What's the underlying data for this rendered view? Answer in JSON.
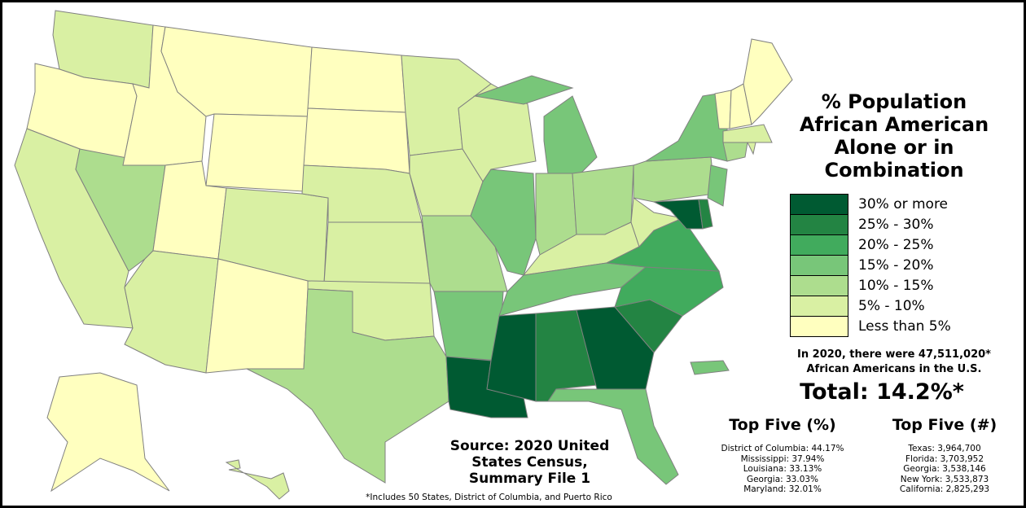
{
  "title": "% Population African American Alone or in Combination",
  "legend": [
    {
      "label": "30% or more",
      "color": "#005a32"
    },
    {
      "label": "25% - 30%",
      "color": "#238443"
    },
    {
      "label": "20% - 25%",
      "color": "#41ab5d"
    },
    {
      "label": "15% - 20%",
      "color": "#78c679"
    },
    {
      "label": "10% - 15%",
      "color": "#addd8e"
    },
    {
      "label": "5% - 10%",
      "color": "#d9f0a3"
    },
    {
      "label": "Less than 5%",
      "color": "#ffffbf"
    }
  ],
  "note_line1": "In 2020, there were 47,511,020*",
  "note_line2": "African Americans in the U.S.",
  "total": "Total: 14.2%*",
  "top_pct": {
    "heading": "Top Five (%)",
    "items": [
      "District of Columbia: 44.17%",
      "Mississippi: 37.94%",
      "Louisiana: 33.13%",
      "Georgia: 33.03%",
      "Maryland: 32.01%"
    ]
  },
  "top_num": {
    "heading": "Top Five (#)",
    "items": [
      "Texas: 3,964,700",
      "Florida: 3,703,952",
      "Georgia: 3,538,146",
      "New York: 3,533,873",
      "California: 2,825,293"
    ]
  },
  "source_line1": "Source: 2020 United",
  "source_line2": "States Census,",
  "source_line3": "Summary File 1",
  "footnote": "*Includes 50 States, District of Columbia, and Puerto Rico",
  "states": [
    {
      "name": "Washington",
      "cls": 5
    },
    {
      "name": "Oregon",
      "cls": 6
    },
    {
      "name": "California",
      "cls": 5
    },
    {
      "name": "Nevada",
      "cls": 4
    },
    {
      "name": "Idaho",
      "cls": 6
    },
    {
      "name": "Montana",
      "cls": 6
    },
    {
      "name": "Wyoming",
      "cls": 6
    },
    {
      "name": "Utah",
      "cls": 6
    },
    {
      "name": "Arizona",
      "cls": 5
    },
    {
      "name": "Colorado",
      "cls": 5
    },
    {
      "name": "New Mexico",
      "cls": 6
    },
    {
      "name": "North Dakota",
      "cls": 6
    },
    {
      "name": "South Dakota",
      "cls": 6
    },
    {
      "name": "Nebraska",
      "cls": 5
    },
    {
      "name": "Kansas",
      "cls": 5
    },
    {
      "name": "Oklahoma",
      "cls": 5
    },
    {
      "name": "Texas",
      "cls": 4
    },
    {
      "name": "Minnesota",
      "cls": 5
    },
    {
      "name": "Iowa",
      "cls": 5
    },
    {
      "name": "Missouri",
      "cls": 4
    },
    {
      "name": "Arkansas",
      "cls": 3
    },
    {
      "name": "Louisiana",
      "cls": 0
    },
    {
      "name": "Wisconsin",
      "cls": 5
    },
    {
      "name": "Illinois",
      "cls": 3
    },
    {
      "name": "Michigan",
      "cls": 3
    },
    {
      "name": "Michigan Upper Peninsula",
      "cls": 3
    },
    {
      "name": "Indiana",
      "cls": 4
    },
    {
      "name": "Ohio",
      "cls": 4
    },
    {
      "name": "Kentucky",
      "cls": 5
    },
    {
      "name": "Tennessee",
      "cls": 3
    },
    {
      "name": "Mississippi",
      "cls": 0
    },
    {
      "name": "Alabama",
      "cls": 1
    },
    {
      "name": "Georgia",
      "cls": 0
    },
    {
      "name": "Florida",
      "cls": 3
    },
    {
      "name": "South Carolina",
      "cls": 1
    },
    {
      "name": "North Carolina",
      "cls": 2
    },
    {
      "name": "Virginia",
      "cls": 2
    },
    {
      "name": "West Virginia",
      "cls": 5
    },
    {
      "name": "Pennsylvania",
      "cls": 4
    },
    {
      "name": "New York",
      "cls": 3
    },
    {
      "name": "Maryland",
      "cls": 0
    },
    {
      "name": "Delaware",
      "cls": 1
    },
    {
      "name": "New Jersey",
      "cls": 3
    },
    {
      "name": "Vermont",
      "cls": 6
    },
    {
      "name": "New Hampshire",
      "cls": 6
    },
    {
      "name": "Maine",
      "cls": 6
    },
    {
      "name": "Massachusetts",
      "cls": 5
    },
    {
      "name": "Connecticut",
      "cls": 4
    },
    {
      "name": "Rhode Island",
      "cls": 5
    },
    {
      "name": "Alaska",
      "cls": 6
    },
    {
      "name": "Hawaii",
      "cls": 5
    },
    {
      "name": "Puerto Rico",
      "cls": 3
    }
  ]
}
